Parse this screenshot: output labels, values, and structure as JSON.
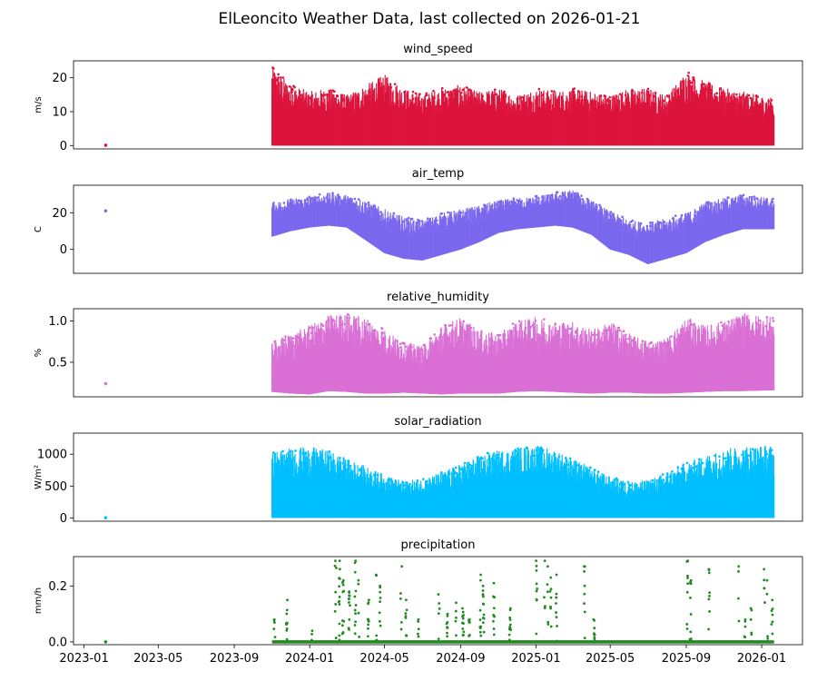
{
  "figure": {
    "title": "ElLeoncito Weather Data, last collected on 2026-01-21"
  },
  "chart_data": [
    {
      "type": "scatter",
      "title": "wind_speed",
      "ylabel": "m/s",
      "color": "#dc143c",
      "ylim": [
        -1,
        25
      ],
      "yticks": [
        0,
        10,
        20
      ],
      "ytick_labels": [
        "0",
        "10",
        "20"
      ],
      "xlim": [
        "2022-12-15",
        "2026-03-08"
      ],
      "xticks": [
        "2023-01-01",
        "2023-05-01",
        "2023-09-01",
        "2024-01-01",
        "2024-05-01",
        "2024-09-01",
        "2025-01-01",
        "2025-05-01",
        "2025-09-01",
        "2026-01-01"
      ],
      "outlier": {
        "x": "2023-02-05",
        "y": 0.1
      },
      "series": [
        {
          "x": [
            "2023-11-01",
            "2023-12-01",
            "2024-01-01",
            "2024-02-01",
            "2024-03-01",
            "2024-04-01",
            "2024-05-01",
            "2024-06-01",
            "2024-07-01",
            "2024-08-01",
            "2024-09-01",
            "2024-10-01",
            "2024-11-01",
            "2024-12-01",
            "2025-01-01",
            "2025-02-01",
            "2025-03-01",
            "2025-04-01",
            "2025-05-01",
            "2025-06-01",
            "2025-07-01",
            "2025-08-01",
            "2025-09-01",
            "2025-10-01",
            "2025-11-01",
            "2025-12-01",
            "2026-01-21"
          ],
          "y_min": [
            0,
            0,
            0,
            0,
            0,
            0,
            0,
            0,
            0,
            0,
            0,
            0,
            0,
            0,
            0,
            0,
            0,
            0,
            0,
            0,
            0,
            0,
            0,
            0,
            0,
            0,
            0
          ],
          "y_max": [
            23.5,
            18,
            16,
            17,
            15,
            18,
            21,
            17,
            15,
            17,
            18,
            16,
            17,
            15,
            17,
            16,
            17,
            16,
            15,
            17,
            17,
            15,
            22,
            19,
            17,
            16,
            14
          ]
        }
      ]
    },
    {
      "type": "scatter",
      "title": "air_temp",
      "ylabel": "C",
      "color": "#7b68ee",
      "ylim": [
        -13,
        35
      ],
      "yticks": [
        0,
        20
      ],
      "ytick_labels": [
        "0",
        "20"
      ],
      "xlim": [
        "2022-12-15",
        "2026-03-08"
      ],
      "outlier": {
        "x": "2023-02-05",
        "y": 21
      },
      "series": [
        {
          "x": [
            "2023-11-01",
            "2023-12-01",
            "2024-01-01",
            "2024-02-01",
            "2024-03-01",
            "2024-04-01",
            "2024-05-01",
            "2024-06-01",
            "2024-07-01",
            "2024-08-01",
            "2024-09-01",
            "2024-10-01",
            "2024-11-01",
            "2024-12-01",
            "2025-01-01",
            "2025-02-01",
            "2025-03-01",
            "2025-04-01",
            "2025-05-01",
            "2025-06-01",
            "2025-07-01",
            "2025-08-01",
            "2025-09-01",
            "2025-10-01",
            "2025-11-01",
            "2025-12-01",
            "2026-01-21"
          ],
          "y_min": [
            7,
            10,
            12,
            13,
            12,
            5,
            -2,
            -5,
            -6,
            -3,
            0,
            4,
            9,
            11,
            12,
            13,
            12,
            8,
            0,
            -3,
            -8,
            -5,
            -2,
            4,
            8,
            11,
            11
          ],
          "y_max": [
            26,
            28,
            29,
            31,
            30,
            27,
            22,
            18,
            16,
            20,
            22,
            24,
            27,
            28,
            29,
            31,
            33,
            27,
            21,
            16,
            15,
            17,
            20,
            26,
            28,
            30,
            28
          ]
        }
      ]
    },
    {
      "type": "scatter",
      "title": "relative_humidity",
      "ylabel": "%",
      "color": "#da70d6",
      "ylim": [
        0.08,
        1.15
      ],
      "yticks": [
        0.5,
        1.0
      ],
      "ytick_labels": [
        "0.5",
        "1.0"
      ],
      "xlim": [
        "2022-12-15",
        "2026-03-08"
      ],
      "outlier": {
        "x": "2023-02-05",
        "y": 0.24
      },
      "series": [
        {
          "x": [
            "2023-11-01",
            "2023-12-01",
            "2024-01-01",
            "2024-02-01",
            "2024-03-01",
            "2024-04-01",
            "2024-05-01",
            "2024-06-01",
            "2024-07-01",
            "2024-08-01",
            "2024-09-01",
            "2024-10-01",
            "2024-11-01",
            "2024-12-01",
            "2025-01-01",
            "2025-02-01",
            "2025-03-01",
            "2025-04-01",
            "2025-05-01",
            "2025-06-01",
            "2025-07-01",
            "2025-08-01",
            "2025-09-01",
            "2025-10-01",
            "2025-11-01",
            "2025-12-01",
            "2026-01-21"
          ],
          "y_min": [
            0.14,
            0.12,
            0.11,
            0.15,
            0.14,
            0.12,
            0.12,
            0.13,
            0.12,
            0.11,
            0.12,
            0.12,
            0.12,
            0.14,
            0.15,
            0.14,
            0.13,
            0.12,
            0.13,
            0.13,
            0.12,
            0.12,
            0.13,
            0.14,
            0.15,
            0.15,
            0.16
          ],
          "y_max": [
            0.75,
            0.85,
            0.95,
            1.08,
            1.1,
            1.05,
            0.9,
            0.75,
            0.7,
            0.95,
            1.05,
            0.9,
            0.85,
            1.0,
            1.05,
            1.0,
            1.0,
            0.9,
            1.0,
            0.85,
            0.75,
            0.8,
            1.05,
            0.95,
            1.0,
            1.1,
            1.05
          ]
        }
      ]
    },
    {
      "type": "scatter",
      "title": "solar_radiation",
      "ylabel": "W/m²",
      "color": "#00bfff",
      "ylim": [
        -50,
        1330
      ],
      "yticks": [
        0,
        500,
        1000
      ],
      "ytick_labels": [
        "0",
        "500",
        "1000"
      ],
      "xlim": [
        "2022-12-15",
        "2026-03-08"
      ],
      "outlier": {
        "x": "2023-02-05",
        "y": 5
      },
      "series": [
        {
          "x": [
            "2023-11-01",
            "2023-12-01",
            "2024-01-01",
            "2024-02-01",
            "2024-03-01",
            "2024-04-01",
            "2024-05-01",
            "2024-06-01",
            "2024-07-01",
            "2024-08-01",
            "2024-09-01",
            "2024-10-01",
            "2024-11-01",
            "2024-12-01",
            "2025-01-01",
            "2025-02-01",
            "2025-03-01",
            "2025-04-01",
            "2025-05-01",
            "2025-06-01",
            "2025-07-01",
            "2025-08-01",
            "2025-09-01",
            "2025-10-01",
            "2025-11-01",
            "2025-12-01",
            "2026-01-21"
          ],
          "y_min": [
            0,
            0,
            0,
            0,
            0,
            0,
            0,
            0,
            0,
            0,
            0,
            0,
            0,
            0,
            0,
            0,
            0,
            0,
            0,
            0,
            0,
            0,
            0,
            0,
            0,
            0,
            0
          ],
          "y_max": [
            1050,
            1100,
            1120,
            1060,
            940,
            810,
            680,
            580,
            620,
            720,
            850,
            990,
            1060,
            1110,
            1150,
            1080,
            930,
            800,
            650,
            570,
            600,
            720,
            860,
            990,
            1080,
            1140,
            1150
          ]
        }
      ]
    },
    {
      "type": "scatter",
      "title": "precipitation",
      "ylabel": "mm/h",
      "color": "#228b22",
      "ylim": [
        -0.01,
        0.305
      ],
      "yticks": [
        0.0,
        0.2
      ],
      "ytick_labels": [
        "0.0",
        "0.2"
      ],
      "xlim": [
        "2022-12-15",
        "2026-03-08"
      ],
      "xticks": [
        "2023-01-01",
        "2023-05-01",
        "2023-09-01",
        "2024-01-01",
        "2024-05-01",
        "2024-09-01",
        "2025-01-01",
        "2025-05-01",
        "2025-09-01",
        "2026-01-01"
      ],
      "xtick_labels": [
        "2023-01",
        "2023-05",
        "2023-09",
        "2024-01",
        "2024-05",
        "2024-09",
        "2025-01",
        "2025-05",
        "2025-09",
        "2026-01"
      ],
      "baseline": {
        "x_start": "2023-11-01",
        "x_end": "2026-01-21",
        "y": 0.0
      },
      "outlier": {
        "x": "2023-02-05",
        "y": 0.0
      },
      "series": [
        {
          "events": [
            {
              "x": "2023-11-05",
              "y_max": 0.08
            },
            {
              "x": "2023-11-25",
              "y_max": 0.15
            },
            {
              "x": "2024-01-05",
              "y_max": 0.04
            },
            {
              "x": "2024-02-12",
              "y_max": 0.29
            },
            {
              "x": "2024-02-18",
              "y_max": 0.29
            },
            {
              "x": "2024-02-24",
              "y_max": 0.22
            },
            {
              "x": "2024-03-05",
              "y_max": 0.18
            },
            {
              "x": "2024-03-15",
              "y_max": 0.29
            },
            {
              "x": "2024-03-20",
              "y_max": 0.22
            },
            {
              "x": "2024-04-05",
              "y_max": 0.15
            },
            {
              "x": "2024-04-18",
              "y_max": 0.24
            },
            {
              "x": "2024-04-24",
              "y_max": 0.2
            },
            {
              "x": "2024-05-28",
              "y_max": 0.27
            },
            {
              "x": "2024-06-05",
              "y_max": 0.15
            },
            {
              "x": "2024-06-25",
              "y_max": 0.08
            },
            {
              "x": "2024-07-28",
              "y_max": 0.17
            },
            {
              "x": "2024-08-10",
              "y_max": 0.1
            },
            {
              "x": "2024-08-25",
              "y_max": 0.14
            },
            {
              "x": "2024-09-05",
              "y_max": 0.12
            },
            {
              "x": "2024-09-15",
              "y_max": 0.08
            },
            {
              "x": "2024-10-03",
              "y_max": 0.24
            },
            {
              "x": "2024-10-08",
              "y_max": 0.2
            },
            {
              "x": "2024-10-25",
              "y_max": 0.21
            },
            {
              "x": "2024-11-20",
              "y_max": 0.12
            },
            {
              "x": "2025-01-02",
              "y_max": 0.29
            },
            {
              "x": "2025-01-15",
              "y_max": 0.29
            },
            {
              "x": "2025-01-20",
              "y_max": 0.27
            },
            {
              "x": "2025-01-25",
              "y_max": 0.23
            },
            {
              "x": "2025-02-03",
              "y_max": 0.24
            },
            {
              "x": "2025-03-20",
              "y_max": 0.27
            },
            {
              "x": "2025-04-05",
              "y_max": 0.08
            },
            {
              "x": "2025-09-03",
              "y_max": 0.29
            },
            {
              "x": "2025-09-08",
              "y_max": 0.22
            },
            {
              "x": "2025-10-08",
              "y_max": 0.26
            },
            {
              "x": "2025-11-25",
              "y_max": 0.27
            },
            {
              "x": "2025-12-05",
              "y_max": 0.08
            },
            {
              "x": "2025-12-15",
              "y_max": 0.12
            },
            {
              "x": "2026-01-05",
              "y_max": 0.26
            },
            {
              "x": "2026-01-10",
              "y_max": 0.22
            },
            {
              "x": "2026-01-18",
              "y_max": 0.15
            }
          ]
        }
      ]
    }
  ]
}
